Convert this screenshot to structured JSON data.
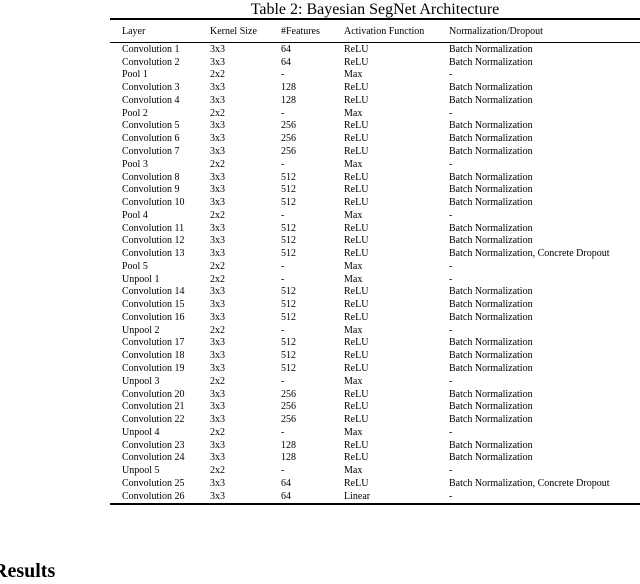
{
  "caption": "Table 2: Bayesian SegNet Architecture",
  "table": {
    "headers": [
      "Layer",
      "Kernel Size",
      "#Features",
      "Activation Function",
      "Normalization/Dropout"
    ],
    "rows": [
      [
        "Convolution 1",
        "3x3",
        "64",
        "ReLU",
        "Batch Normalization"
      ],
      [
        "Convolution 2",
        "3x3",
        "64",
        "ReLU",
        "Batch Normalization"
      ],
      [
        "Pool 1",
        "2x2",
        "-",
        "Max",
        "-"
      ],
      [
        "Convolution 3",
        "3x3",
        "128",
        "ReLU",
        "Batch Normalization"
      ],
      [
        "Convolution 4",
        "3x3",
        "128",
        "ReLU",
        "Batch Normalization"
      ],
      [
        "Pool 2",
        "2x2",
        "-",
        "Max",
        "-"
      ],
      [
        "Convolution 5",
        "3x3",
        "256",
        "ReLU",
        "Batch Normalization"
      ],
      [
        "Convolution 6",
        "3x3",
        "256",
        "ReLU",
        "Batch Normalization"
      ],
      [
        "Convolution 7",
        "3x3",
        "256",
        "ReLU",
        "Batch Normalization"
      ],
      [
        "Pool 3",
        "2x2",
        "-",
        "Max",
        "-"
      ],
      [
        "Convolution 8",
        "3x3",
        "512",
        "ReLU",
        "Batch Normalization"
      ],
      [
        "Convolution 9",
        "3x3",
        "512",
        "ReLU",
        "Batch Normalization"
      ],
      [
        "Convolution 10",
        "3x3",
        "512",
        "ReLU",
        "Batch Normalization"
      ],
      [
        "Pool 4",
        "2x2",
        "-",
        "Max",
        "-"
      ],
      [
        "Convolution 11",
        "3x3",
        "512",
        "ReLU",
        "Batch Normalization"
      ],
      [
        "Convolution 12",
        "3x3",
        "512",
        "ReLU",
        "Batch Normalization"
      ],
      [
        "Convolution 13",
        "3x3",
        "512",
        "ReLU",
        "Batch Normalization, Concrete Dropout"
      ],
      [
        "Pool 5",
        "2x2",
        "-",
        "Max",
        "-"
      ],
      [
        "Unpool 1",
        "2x2",
        "-",
        "Max",
        "-"
      ],
      [
        "Convolution 14",
        "3x3",
        "512",
        "ReLU",
        "Batch Normalization"
      ],
      [
        "Convolution 15",
        "3x3",
        "512",
        "ReLU",
        "Batch Normalization"
      ],
      [
        "Convolution 16",
        "3x3",
        "512",
        "ReLU",
        "Batch Normalization"
      ],
      [
        "Unpool 2",
        "2x2",
        "-",
        "Max",
        "-"
      ],
      [
        "Convolution 17",
        "3x3",
        "512",
        "ReLU",
        "Batch Normalization"
      ],
      [
        "Convolution 18",
        "3x3",
        "512",
        "ReLU",
        "Batch Normalization"
      ],
      [
        "Convolution 19",
        "3x3",
        "512",
        "ReLU",
        "Batch Normalization"
      ],
      [
        "Unpool 3",
        "2x2",
        "-",
        "Max",
        "-"
      ],
      [
        "Convolution 20",
        "3x3",
        "256",
        "ReLU",
        "Batch Normalization"
      ],
      [
        "Convolution 21",
        "3x3",
        "256",
        "ReLU",
        "Batch Normalization"
      ],
      [
        "Convolution 22",
        "3x3",
        "256",
        "ReLU",
        "Batch Normalization"
      ],
      [
        "Unpool 4",
        "2x2",
        "-",
        "Max",
        "-"
      ],
      [
        "Convolution 23",
        "3x3",
        "128",
        "ReLU",
        "Batch Normalization"
      ],
      [
        "Convolution 24",
        "3x3",
        "128",
        "ReLU",
        "Batch Normalization"
      ],
      [
        "Unpool 5",
        "2x2",
        "-",
        "Max",
        "-"
      ],
      [
        "Convolution 25",
        "3x3",
        "64",
        "ReLU",
        "Batch Normalization, Concrete Dropout"
      ],
      [
        "Convolution 26",
        "3x3",
        "64",
        "Linear",
        "-"
      ]
    ]
  },
  "section_heading": "Results"
}
